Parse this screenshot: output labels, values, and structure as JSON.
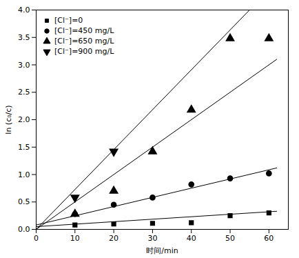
{
  "chart_data": {
    "type": "scatter",
    "xlabel": "时间/min",
    "ylabel": "ln (c₀/c)",
    "xlim": [
      0,
      65
    ],
    "ylim": [
      0,
      4.0
    ],
    "xticks": [
      0,
      10,
      20,
      30,
      40,
      50,
      60
    ],
    "yticks": [
      {
        "value": 0,
        "label": "0.0"
      },
      0.5,
      {
        "value": 1,
        "label": "1.0"
      },
      1.5,
      {
        "value": 2,
        "label": "2.0"
      },
      2.5,
      {
        "value": 3,
        "label": "3.0"
      },
      3.5,
      {
        "value": 4,
        "label": "4.0"
      }
    ],
    "grid": false,
    "legend": "upper left",
    "series": [
      {
        "name": "[Cl⁻]=0",
        "color": "black",
        "marker": "square",
        "x": [
          10,
          20,
          30,
          40,
          50,
          60
        ],
        "values": [
          0.08,
          0.1,
          0.11,
          0.12,
          0.25,
          0.3
        ],
        "line_x": [
          0,
          62
        ],
        "line_y": [
          0.05,
          0.33
        ]
      },
      {
        "name": "[Cl⁻]=450 mg/L",
        "color": "black",
        "marker": "circle",
        "x": [
          10,
          20,
          30,
          40,
          50,
          60
        ],
        "values": [
          0.28,
          0.45,
          0.58,
          0.82,
          0.93,
          1.02
        ],
        "line_x": [
          0,
          62
        ],
        "line_y": [
          0.08,
          1.12
        ]
      },
      {
        "name": "[Cl⁻]=650 mg/L",
        "color": "black",
        "marker": "triangle-up",
        "x": [
          10,
          20,
          30,
          40,
          50,
          60
        ],
        "values": [
          0.28,
          0.7,
          1.42,
          2.18,
          3.48,
          3.48
        ],
        "line_x": [
          0,
          62
        ],
        "line_y": [
          0.0,
          3.1
        ]
      },
      {
        "name": "[Cl⁻]=900 mg/L",
        "color": "black",
        "marker": "triangle-down",
        "x": [
          10,
          20
        ],
        "values": [
          0.58,
          1.42
        ],
        "line_x": [
          0,
          55
        ],
        "line_y": [
          0.0,
          4.0
        ]
      }
    ]
  }
}
